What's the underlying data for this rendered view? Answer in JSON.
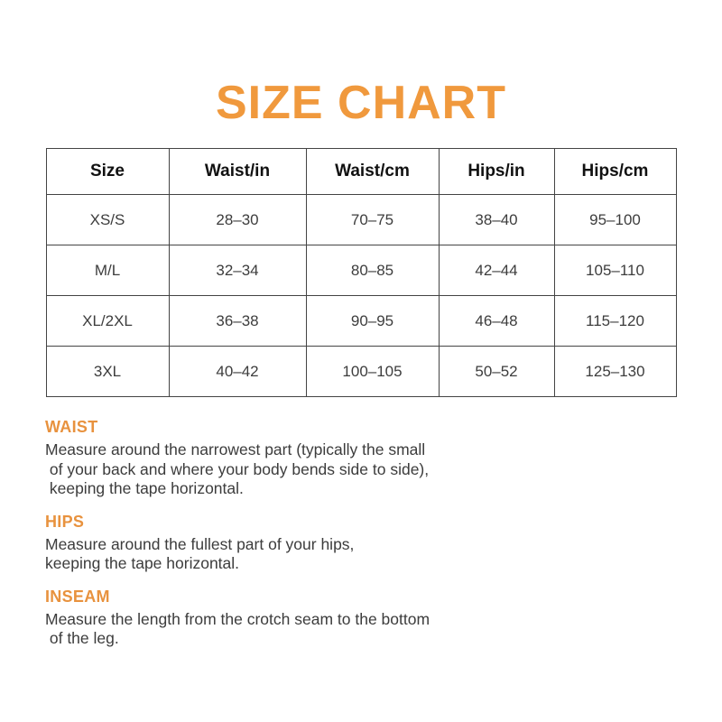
{
  "title": "SIZE CHART",
  "colors": {
    "title_accent": "#F0993D",
    "section_heading_accent": "#E8923E",
    "table_border": "#444444",
    "body_text": "#3c3c3c"
  },
  "table": {
    "headers": [
      "Size",
      "Waist/in",
      "Waist/cm",
      "Hips/in",
      "Hips/cm"
    ],
    "rows": [
      [
        "XS/S",
        "28–30",
        "70–75",
        "38–40",
        "95–100"
      ],
      [
        "M/L",
        "32–34",
        "80–85",
        "42–44",
        "105–110"
      ],
      [
        "XL/2XL",
        "36–38",
        "90–95",
        "46–48",
        "115–120"
      ],
      [
        "3XL",
        "40–42",
        "100–105",
        "50–52",
        "125–130"
      ]
    ]
  },
  "sections": [
    {
      "heading": "WAIST",
      "lines": [
        "Measure around the narrowest part (typically the small",
        " of your back and where your body bends side to side),",
        " keeping the tape horizontal."
      ]
    },
    {
      "heading": "HIPS",
      "lines": [
        "Measure around the fullest part of your hips,",
        "keeping the tape horizontal."
      ]
    },
    {
      "heading": "INSEAM",
      "lines": [
        "Measure the length from the crotch seam to the bottom",
        " of the leg."
      ]
    }
  ]
}
